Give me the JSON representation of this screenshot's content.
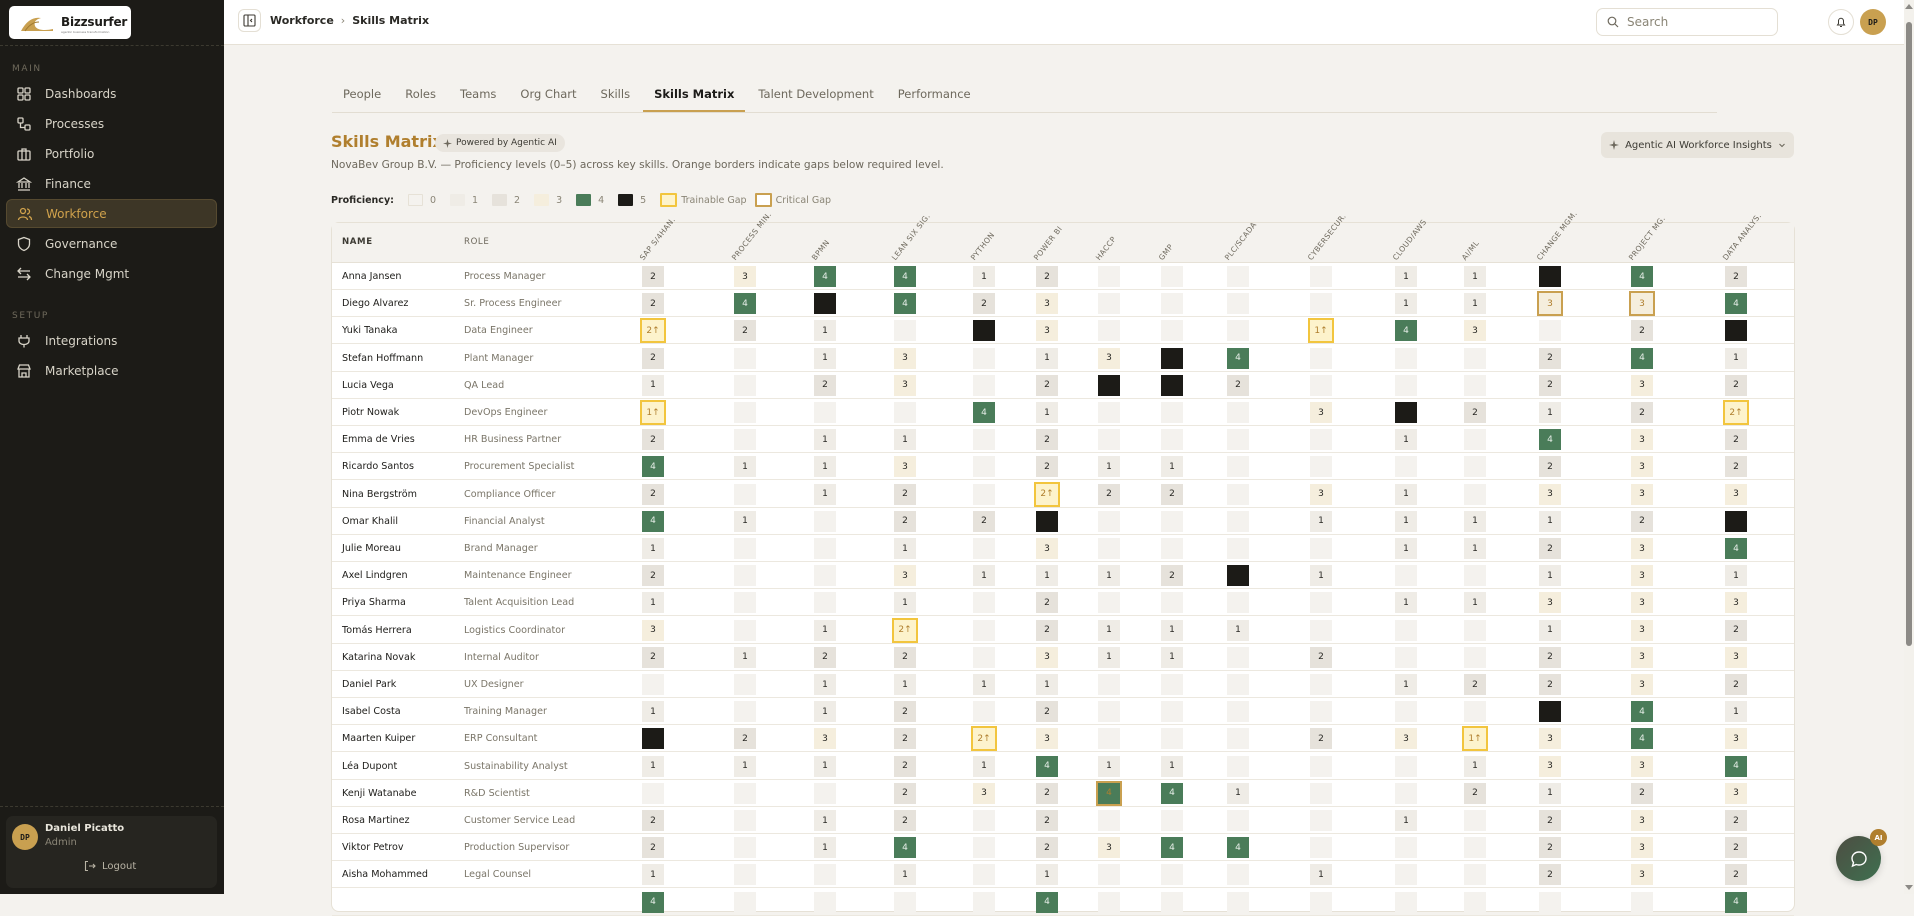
{
  "app": {
    "name": "Bizzsurfer",
    "tagline": "agentic business transformation"
  },
  "sidebar": {
    "sections": [
      {
        "label": "MAIN",
        "items": [
          {
            "label": "Dashboards",
            "icon": "dashboard-icon"
          },
          {
            "label": "Processes",
            "icon": "process-icon"
          },
          {
            "label": "Portfolio",
            "icon": "briefcase-icon"
          },
          {
            "label": "Finance",
            "icon": "bank-icon"
          },
          {
            "label": "Workforce",
            "icon": "users-icon",
            "active": true
          },
          {
            "label": "Governance",
            "icon": "shield-icon"
          },
          {
            "label": "Change Mgmt",
            "icon": "arrows-icon"
          }
        ]
      },
      {
        "label": "SETUP",
        "items": [
          {
            "label": "Integrations",
            "icon": "plug-icon"
          },
          {
            "label": "Marketplace",
            "icon": "store-icon"
          }
        ]
      }
    ],
    "user": {
      "initials": "DP",
      "name": "Daniel Picatto",
      "role": "Admin",
      "logout": "Logout"
    }
  },
  "topbar": {
    "breadcrumb": [
      "Workforce",
      "Skills Matrix"
    ],
    "search_placeholder": "Search",
    "avatar_initials": "DP"
  },
  "tabs": [
    {
      "label": "People"
    },
    {
      "label": "Roles"
    },
    {
      "label": "Teams"
    },
    {
      "label": "Org Chart"
    },
    {
      "label": "Skills"
    },
    {
      "label": "Skills Matrix",
      "active": true
    },
    {
      "label": "Talent Development"
    },
    {
      "label": "Performance"
    }
  ],
  "page": {
    "title": "Skills Matrix",
    "ai_pill": "Powered by Agentic AI",
    "subtitle": "NovaBev Group B.V. — Proficiency levels (0–5) across key skills. Orange borders indicate gaps below required level.",
    "insights_button": "Agentic AI Workforce Insights"
  },
  "legend": {
    "label": "Proficiency:",
    "levels": [
      "0",
      "1",
      "2",
      "3",
      "4",
      "5"
    ],
    "trainable": "Trainable Gap",
    "critical": "Critical Gap"
  },
  "colors": {
    "accent": "#c9a050",
    "title": "#b07f2e",
    "level4": "#4a7c59",
    "level5": "#1c1b17",
    "trainable_border": "#f2c53e"
  },
  "table": {
    "name_header": "NAME",
    "role_header": "ROLE",
    "skills": [
      "SAP S/4HANA",
      "PROCESS MINING",
      "BPMN",
      "LEAN SIX SIGMA",
      "PYTHON",
      "POWER BI",
      "HACCP",
      "GMP",
      "PLC/SCADA",
      "CYBERSECURITY",
      "CLOUD/AWS",
      "AI/ML",
      "CHANGE MGMT",
      "PROJECT MGMT",
      "DATA ANALYSIS"
    ],
    "skills_display": [
      "SAP S/4HAN.",
      "PROCESS MIN.",
      "BPMN",
      "LEAN SIX SIG.",
      "PYTHON",
      "POWER BI",
      "HACCP",
      "GMP",
      "PLC/SCADA",
      "CYBERSECUR.",
      "CLOUD/AWS",
      "AI/ML",
      "CHANGE MGM.",
      "PROJECT MG.",
      "DATA ANALYS."
    ],
    "rows": [
      {
        "name": "Anna Jansen",
        "role": "Process Manager",
        "cells": [
          "2",
          "3",
          "4",
          "4",
          "1",
          "2",
          "0",
          "0",
          "0",
          "0",
          "1",
          "1",
          "5",
          "4",
          "2"
        ]
      },
      {
        "name": "Diego Alvarez",
        "role": "Sr. Process Engineer",
        "cells": [
          "2",
          "4",
          "5",
          "4",
          "2",
          "3",
          "0",
          "0",
          "0",
          "0",
          "1",
          "1",
          "3c",
          "3c",
          "4"
        ]
      },
      {
        "name": "Yuki Tanaka",
        "role": "Data Engineer",
        "cells": [
          "2t",
          "2",
          "1",
          "0",
          "5",
          "3",
          "0",
          "0",
          "0",
          "1t",
          "4",
          "3",
          "0",
          "2",
          "5"
        ]
      },
      {
        "name": "Stefan Hoffmann",
        "role": "Plant Manager",
        "cells": [
          "2",
          "0",
          "1",
          "3",
          "0",
          "1",
          "3",
          "5",
          "4",
          "0",
          "0",
          "0",
          "2",
          "4",
          "1"
        ]
      },
      {
        "name": "Lucia Vega",
        "role": "QA Lead",
        "cells": [
          "1",
          "0",
          "2",
          "3",
          "0",
          "2",
          "5",
          "5",
          "2",
          "0",
          "0",
          "0",
          "2",
          "3",
          "2"
        ]
      },
      {
        "name": "Piotr Nowak",
        "role": "DevOps Engineer",
        "cells": [
          "1t",
          "0",
          "0",
          "0",
          "4",
          "1",
          "0",
          "0",
          "0",
          "3",
          "5",
          "2",
          "1",
          "2",
          "2t"
        ]
      },
      {
        "name": "Emma de Vries",
        "role": "HR Business Partner",
        "cells": [
          "2",
          "0",
          "1",
          "1",
          "0",
          "2",
          "0",
          "0",
          "0",
          "0",
          "1",
          "0",
          "4",
          "3",
          "2"
        ]
      },
      {
        "name": "Ricardo Santos",
        "role": "Procurement Specialist",
        "cells": [
          "4",
          "1",
          "1",
          "3",
          "0",
          "2",
          "1",
          "1",
          "0",
          "0",
          "0",
          "0",
          "2",
          "3",
          "2"
        ]
      },
      {
        "name": "Nina Bergström",
        "role": "Compliance Officer",
        "cells": [
          "2",
          "0",
          "1",
          "2",
          "0",
          "2t",
          "2",
          "2",
          "0",
          "3",
          "1",
          "0",
          "3",
          "3",
          "3"
        ]
      },
      {
        "name": "Omar Khalil",
        "role": "Financial Analyst",
        "cells": [
          "4",
          "1",
          "0",
          "2",
          "2",
          "5",
          "0",
          "0",
          "0",
          "1",
          "1",
          "1",
          "1",
          "2",
          "5"
        ]
      },
      {
        "name": "Julie Moreau",
        "role": "Brand Manager",
        "cells": [
          "1",
          "0",
          "0",
          "1",
          "0",
          "3",
          "0",
          "0",
          "0",
          "0",
          "1",
          "1",
          "2",
          "3",
          "4"
        ]
      },
      {
        "name": "Axel Lindgren",
        "role": "Maintenance Engineer",
        "cells": [
          "2",
          "0",
          "0",
          "3",
          "1",
          "1",
          "1",
          "2",
          "5",
          "1",
          "0",
          "0",
          "1",
          "3",
          "1"
        ]
      },
      {
        "name": "Priya Sharma",
        "role": "Talent Acquisition Lead",
        "cells": [
          "1",
          "0",
          "0",
          "1",
          "0",
          "2",
          "0",
          "0",
          "0",
          "0",
          "1",
          "1",
          "3",
          "3",
          "3"
        ]
      },
      {
        "name": "Tomás Herrera",
        "role": "Logistics Coordinator",
        "cells": [
          "3",
          "0",
          "1",
          "2t",
          "0",
          "2",
          "1",
          "1",
          "1",
          "0",
          "0",
          "0",
          "1",
          "3",
          "2"
        ]
      },
      {
        "name": "Katarina Novak",
        "role": "Internal Auditor",
        "cells": [
          "2",
          "1",
          "2",
          "2",
          "0",
          "3",
          "1",
          "1",
          "0",
          "2",
          "0",
          "0",
          "2",
          "3",
          "3"
        ]
      },
      {
        "name": "Daniel Park",
        "role": "UX Designer",
        "cells": [
          "0",
          "0",
          "1",
          "1",
          "1",
          "1",
          "0",
          "0",
          "0",
          "0",
          "1",
          "2",
          "2",
          "3",
          "2"
        ]
      },
      {
        "name": "Isabel Costa",
        "role": "Training Manager",
        "cells": [
          "1",
          "0",
          "1",
          "2",
          "0",
          "2",
          "0",
          "0",
          "0",
          "0",
          "0",
          "0",
          "5",
          "4",
          "1"
        ]
      },
      {
        "name": "Maarten Kuiper",
        "role": "ERP Consultant",
        "cells": [
          "5",
          "2",
          "3",
          "2",
          "2t",
          "3",
          "0",
          "0",
          "0",
          "2",
          "3",
          "1t",
          "3",
          "4",
          "3"
        ]
      },
      {
        "name": "Léa Dupont",
        "role": "Sustainability Analyst",
        "cells": [
          "1",
          "1",
          "1",
          "2",
          "1",
          "4",
          "1",
          "1",
          "0",
          "0",
          "0",
          "1",
          "3",
          "3",
          "4"
        ]
      },
      {
        "name": "Kenji Watanabe",
        "role": "R&D Scientist",
        "cells": [
          "0",
          "0",
          "0",
          "2",
          "3",
          "2",
          "4c",
          "4",
          "1",
          "0",
          "0",
          "2",
          "1",
          "2",
          "3"
        ]
      },
      {
        "name": "Rosa Martinez",
        "role": "Customer Service Lead",
        "cells": [
          "2",
          "0",
          "1",
          "2",
          "0",
          "2",
          "0",
          "0",
          "0",
          "0",
          "1",
          "0",
          "2",
          "3",
          "2"
        ]
      },
      {
        "name": "Viktor Petrov",
        "role": "Production Supervisor",
        "cells": [
          "2",
          "0",
          "1",
          "4",
          "0",
          "2",
          "3",
          "4",
          "4",
          "0",
          "0",
          "0",
          "2",
          "3",
          "2"
        ]
      },
      {
        "name": "Aisha Mohammed",
        "role": "Legal Counsel",
        "cells": [
          "1",
          "0",
          "0",
          "1",
          "0",
          "1",
          "0",
          "0",
          "0",
          "1",
          "0",
          "0",
          "2",
          "3",
          "2"
        ]
      },
      {
        "name": "",
        "role": "",
        "cells": [
          "4",
          "0",
          "0",
          "0",
          "0",
          "4",
          "0",
          "0",
          "0",
          "0",
          "0",
          "0",
          "0",
          "0",
          "4"
        ]
      }
    ]
  },
  "fab": {
    "badge": "AI"
  }
}
